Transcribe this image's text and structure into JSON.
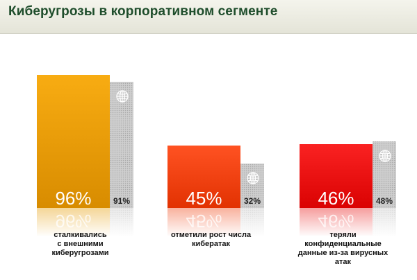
{
  "header": {
    "title": "Киберугрозы в корпоративном сегменте"
  },
  "colors": {
    "title": "#1e4d2b",
    "main_bars": [
      "#e69a00",
      "#f04010",
      "#e81010"
    ],
    "comparison_bar": "#c8c8c8"
  },
  "icons": {
    "comparison": "globe-icon"
  },
  "chart_data": {
    "type": "bar",
    "categories": [
      "сталкивались с внешними киберугрозами",
      "отметили рост числа кибератак",
      "теряли конфиденциальные данные из-за вирусных атак"
    ],
    "category_lines": [
      [
        "сталкивались",
        "с внешними",
        "киберугрозами"
      ],
      [
        "отметили рост числа",
        "кибератак"
      ],
      [
        "теряли",
        "конфиденциальные",
        "данные из-за вирусных",
        "атак"
      ]
    ],
    "series": [
      {
        "values": [
          96,
          45,
          46
        ],
        "labels": [
          "96%",
          "45%",
          "46%"
        ]
      },
      {
        "values": [
          91,
          32,
          48
        ],
        "labels": [
          "91%",
          "32%",
          "48%"
        ]
      }
    ],
    "ylim": [
      0,
      100
    ],
    "grid": false,
    "legend": "none",
    "reflection": true
  }
}
